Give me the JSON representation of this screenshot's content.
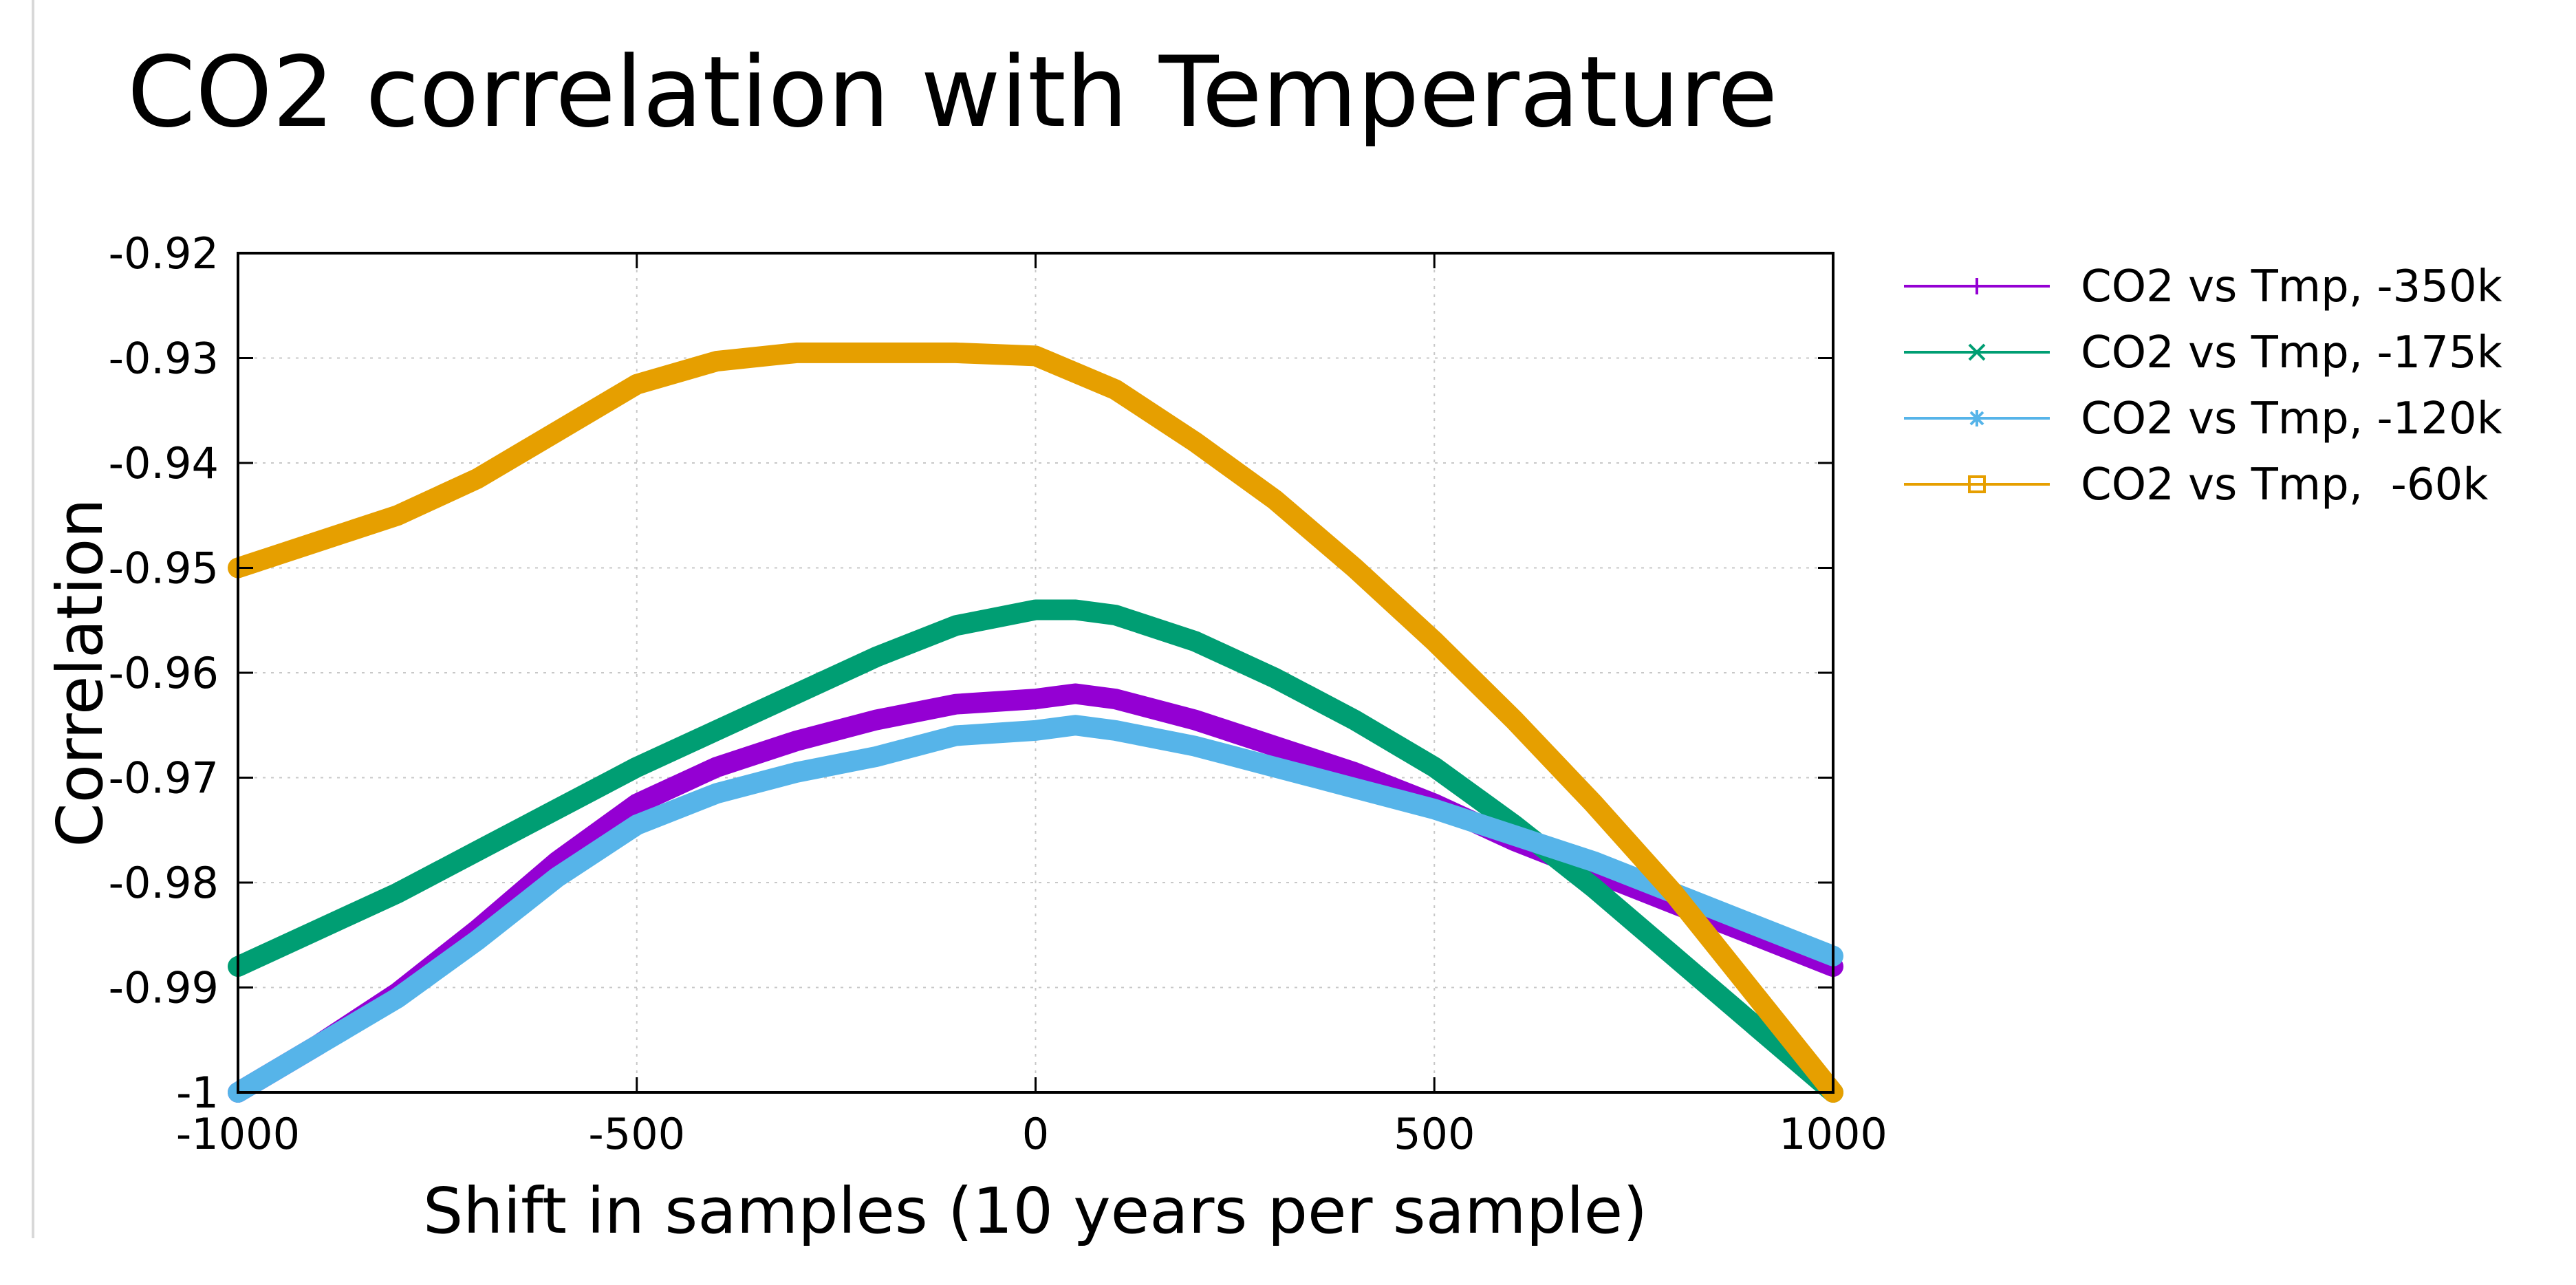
{
  "chart_data": {
    "type": "line",
    "title": "CO2 correlation with Temperature",
    "xlabel": "Shift in samples (10 years per sample)",
    "ylabel": "Correlation",
    "xlim": [
      -1000,
      1000
    ],
    "ylim": [
      -1,
      -0.92
    ],
    "x_ticks": [
      -1000,
      -500,
      0,
      500,
      1000
    ],
    "y_ticks": [
      -0.92,
      -0.93,
      -0.94,
      -0.95,
      -0.96,
      -0.97,
      -0.98,
      -0.99,
      -1
    ],
    "x_tick_labels": [
      "-1000",
      "-500",
      "0",
      "500",
      "1000"
    ],
    "y_tick_labels": [
      "-0.92",
      "-0.93",
      "-0.94",
      "-0.95",
      "-0.96",
      "-0.97",
      "-0.98",
      "-0.99",
      "-1"
    ],
    "grid": true,
    "legend_position": "outside-right",
    "series": [
      {
        "name": "CO2 vs Tmp, -350k",
        "label": "CO2 vs Tmp, -350k",
        "color": "#9400d3",
        "marker": "plus",
        "x": [
          -1000,
          -900,
          -800,
          -700,
          -600,
          -500,
          -400,
          -300,
          -200,
          -100,
          0,
          50,
          100,
          200,
          300,
          400,
          500,
          600,
          700,
          800,
          900,
          1000
        ],
        "y": [
          -1.0,
          -0.9955,
          -0.9905,
          -0.9845,
          -0.978,
          -0.9725,
          -0.969,
          -0.9665,
          -0.9645,
          -0.963,
          -0.9625,
          -0.962,
          -0.9625,
          -0.9645,
          -0.967,
          -0.9695,
          -0.9725,
          -0.976,
          -0.979,
          -0.982,
          -0.985,
          -0.988
        ]
      },
      {
        "name": "CO2 vs Tmp, -175k",
        "label": "CO2 vs Tmp, -175k",
        "color": "#009e73",
        "marker": "x",
        "x": [
          -1000,
          -900,
          -800,
          -700,
          -600,
          -500,
          -400,
          -300,
          -200,
          -100,
          0,
          50,
          100,
          200,
          300,
          400,
          500,
          600,
          700,
          800,
          900,
          1000
        ],
        "y": [
          -0.988,
          -0.9845,
          -0.981,
          -0.977,
          -0.973,
          -0.969,
          -0.9655,
          -0.962,
          -0.9585,
          -0.9555,
          -0.954,
          -0.954,
          -0.9545,
          -0.957,
          -0.9605,
          -0.9645,
          -0.969,
          -0.9745,
          -0.9805,
          -0.987,
          -0.9935,
          -1.0
        ]
      },
      {
        "name": "CO2 vs Tmp, -120k",
        "label": "CO2 vs Tmp, -120k",
        "color": "#56b4e9",
        "marker": "star",
        "x": [
          -1000,
          -900,
          -800,
          -700,
          -600,
          -500,
          -400,
          -300,
          -200,
          -100,
          0,
          50,
          100,
          200,
          300,
          400,
          500,
          600,
          700,
          800,
          900,
          1000
        ],
        "y": [
          -1.0,
          -0.9955,
          -0.991,
          -0.9855,
          -0.9795,
          -0.9745,
          -0.9715,
          -0.9695,
          -0.968,
          -0.966,
          -0.9655,
          -0.965,
          -0.9655,
          -0.967,
          -0.969,
          -0.971,
          -0.973,
          -0.9755,
          -0.978,
          -0.981,
          -0.984,
          -0.987
        ]
      },
      {
        "name": "CO2 vs Tmp,  -60k",
        "label": "CO2 vs Tmp,  -60k",
        "color": "#e69f00",
        "marker": "square",
        "x": [
          -1000,
          -900,
          -800,
          -700,
          -600,
          -500,
          -400,
          -300,
          -200,
          -100,
          0,
          100,
          200,
          300,
          400,
          500,
          600,
          700,
          800,
          900,
          1000
        ],
        "y": [
          -0.95,
          -0.9475,
          -0.945,
          -0.9415,
          -0.937,
          -0.9325,
          -0.9303,
          -0.9295,
          -0.9295,
          -0.9295,
          -0.9298,
          -0.933,
          -0.938,
          -0.9435,
          -0.95,
          -0.957,
          -0.9645,
          -0.9725,
          -0.981,
          -0.9905,
          -1.0
        ]
      }
    ]
  }
}
